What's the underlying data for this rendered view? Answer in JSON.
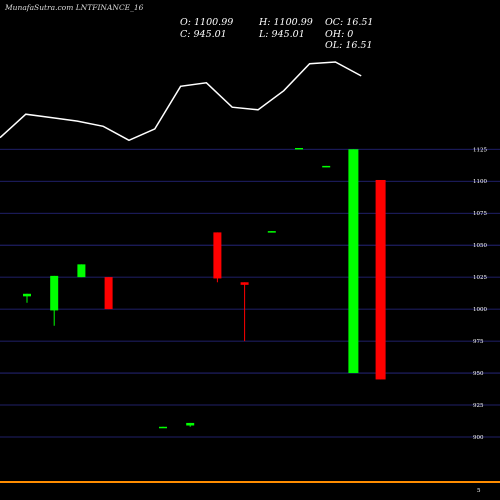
{
  "header": {
    "title": "MunafaSutra.com LNTFINANCE_16",
    "open": "O: 1100.99",
    "high": "H: 1100.99",
    "oc": "OC: 16.51",
    "close": "C: 945.01",
    "low": "L: 945.01",
    "oh": "OH: 0",
    "ol": "OL: 16.51"
  },
  "colors": {
    "up": "#00ff00",
    "down": "#ff0000",
    "grid": "#2a2a8a",
    "line": "#ffffff",
    "volume_axis": "#ff8c00"
  },
  "chart_data": {
    "type": "candlestick",
    "y_ticks": [
      1125,
      1100,
      1075,
      1050,
      1025,
      1000,
      975,
      950,
      925,
      900
    ],
    "ylim": [
      887,
      1138
    ],
    "candles": [
      {
        "open": 1012,
        "high": 1012,
        "low": 1005,
        "close": 1010,
        "color": "up"
      },
      {
        "open": 999,
        "high": 1026,
        "low": 987,
        "close": 1026,
        "color": "up"
      },
      {
        "open": 1025,
        "high": 1035,
        "low": 1025,
        "close": 1035,
        "color": "up"
      },
      {
        "open": 1025,
        "high": 1025,
        "low": 1000,
        "close": 1000,
        "color": "down"
      },
      null,
      {
        "open": 908,
        "high": 908,
        "low": 907,
        "close": 907,
        "color": "up"
      },
      {
        "open": 909,
        "high": 911,
        "low": 908,
        "close": 911,
        "color": "up"
      },
      {
        "open": 1060,
        "high": 1060,
        "low": 1021,
        "close": 1024,
        "color": "down"
      },
      {
        "open": 1021,
        "high": 1021,
        "low": 975,
        "close": 1019,
        "color": "down"
      },
      {
        "open": 1061,
        "high": 1061,
        "low": 1060,
        "close": 1060,
        "color": "up"
      },
      {
        "open": 1126,
        "high": 1126,
        "low": 1125,
        "close": 1125,
        "color": "up"
      },
      {
        "open": 1112,
        "high": 1112,
        "low": 1111,
        "close": 1111,
        "color": "up"
      },
      {
        "open": 950,
        "high": 1125,
        "low": 950,
        "close": 1125,
        "color": "up"
      },
      {
        "open": 1100.99,
        "high": 1100.99,
        "low": 945.01,
        "close": 945.01,
        "color": "down"
      }
    ],
    "line_series": [
      105,
      132,
      128,
      124,
      118,
      102,
      115,
      164,
      168,
      140,
      137,
      159,
      190,
      192,
      176
    ]
  }
}
